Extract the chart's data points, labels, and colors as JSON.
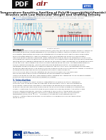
{
  "title_line1": "Temperature-Sensitive Swelling of Poly(N-isopropylacrylamide)",
  "title_line2": "Brushes with Low Molecular Weight and Grafting Density",
  "journal": "ACS Macro Lett.",
  "pdf_label": "PDF",
  "header_blue": "#1a5276",
  "header_teal": "#5dade2",
  "background": "#ffffff",
  "body_text_color": "#2c2c2c",
  "abstract_label": "ABSTRACT",
  "section_label": "1. Introduction",
  "blue_banner": "#1a5276",
  "light_blue": "#aed6f1",
  "gray_text": "#666666",
  "dark_gray": "#222222",
  "figure_bg": "#f5f0e8",
  "figure_border": "#cccccc",
  "air_red": "#8b1a1a",
  "acs_blue": "#003087",
  "tag_blue": "#3a6bc9",
  "line_color": "#aaaaaa",
  "brush_blue": "#2980b9",
  "substrate_gray": "#8899aa",
  "substrate_light": "#aabbcc",
  "water_blue": "#7ec8e3",
  "chain_red": "#cc3333",
  "cream_bg": "#f7f3ec",
  "support_bg": "#e8f0f8",
  "support_border": "#a0b8d0",
  "intro_blue": "#003087"
}
